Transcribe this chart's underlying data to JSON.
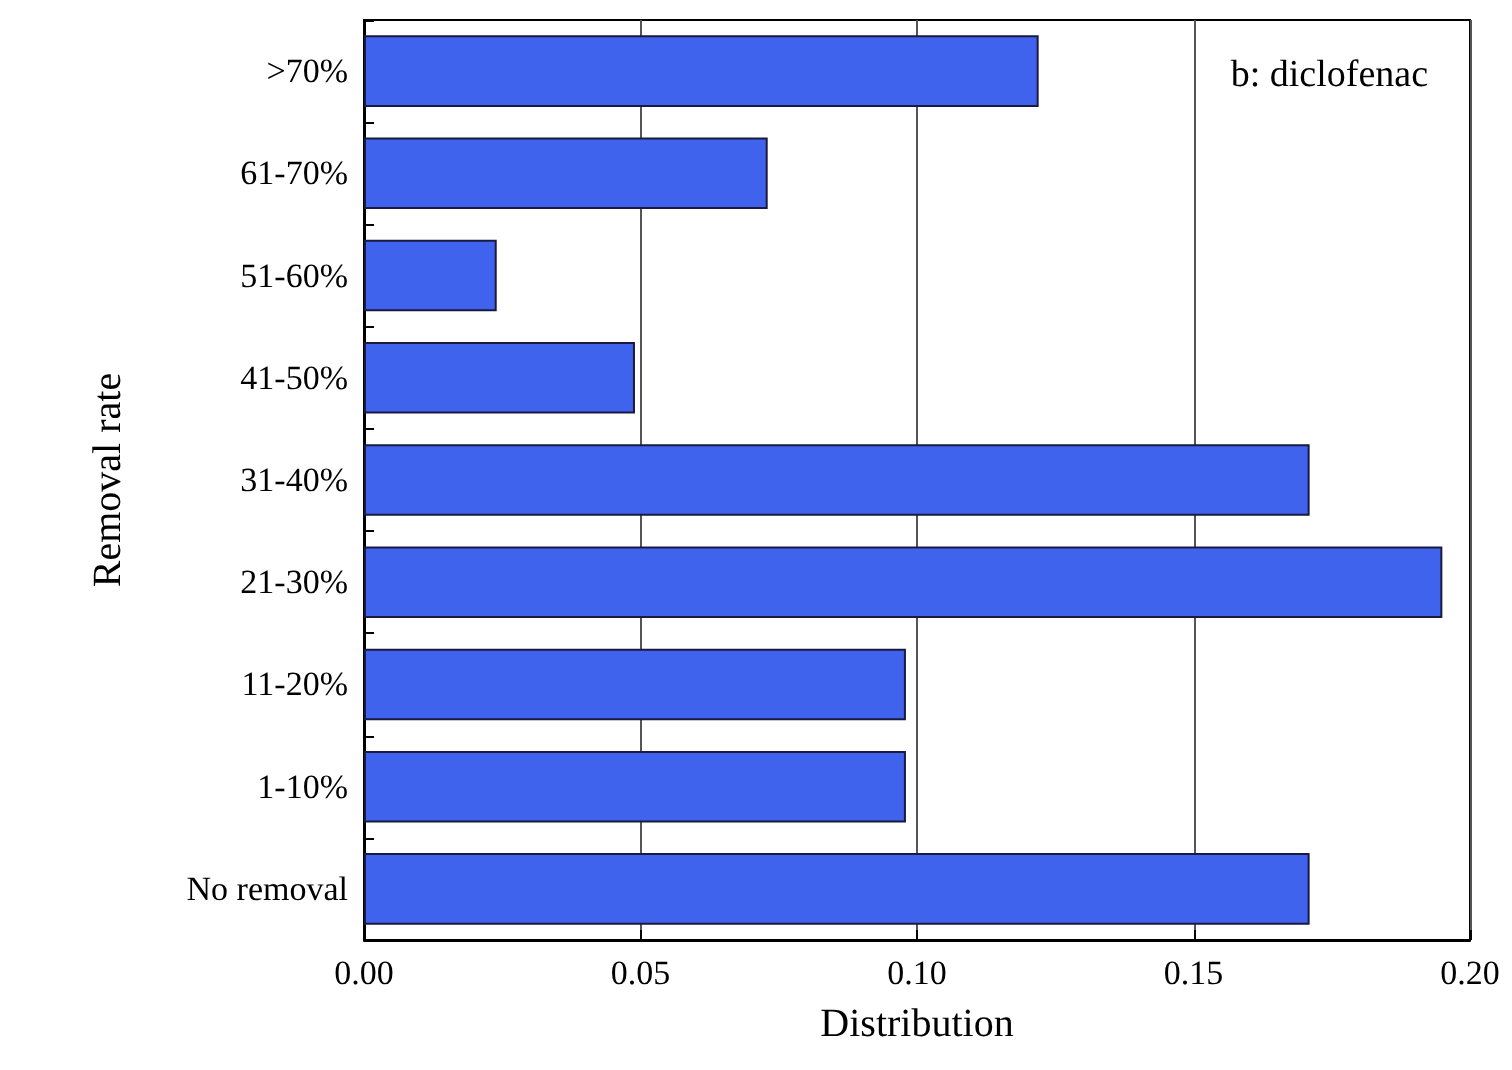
{
  "chart_data": {
    "type": "bar",
    "orientation": "horizontal",
    "xlabel": "Distribution",
    "ylabel": "Removal rate",
    "annotations": [
      "b: diclofenac"
    ],
    "categories": [
      ">70%",
      "61-70%",
      "51-60%",
      "41-50%",
      "31-40%",
      "21-30%",
      "11-20%",
      "1-10%",
      "No removal"
    ],
    "values": [
      0.122,
      0.073,
      0.024,
      0.049,
      0.171,
      0.195,
      0.098,
      0.098,
      0.171
    ],
    "color": "#3f63ec",
    "xlim": [
      0,
      0.2
    ],
    "xticks": [
      {
        "value": 0,
        "label": "0.00"
      },
      {
        "value": 0.05,
        "label": "0.05"
      },
      {
        "value": 0.1,
        "label": "0.10"
      },
      {
        "value": 0.15,
        "label": "0.15"
      },
      {
        "value": 0.2,
        "label": "0.20"
      }
    ],
    "grid": "x"
  }
}
